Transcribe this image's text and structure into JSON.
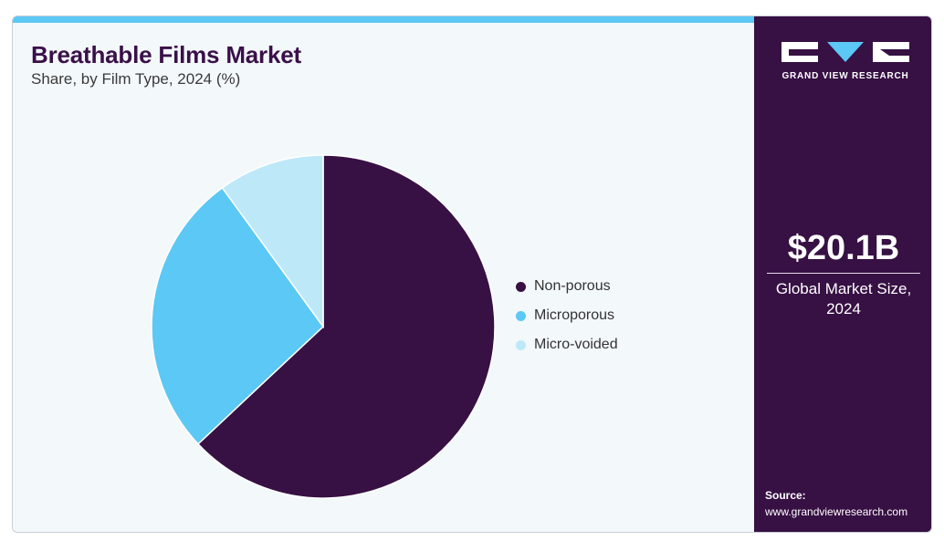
{
  "header": {
    "title": "Breathable Films Market",
    "subtitle": "Share, by Film Type, 2024 (%)"
  },
  "chart_data": {
    "type": "pie",
    "categories": [
      "Non-porous",
      "Microporous",
      "Micro-voided"
    ],
    "values": [
      63,
      27,
      10
    ],
    "colors": [
      "#371044",
      "#5bc8f5",
      "#bde8f8"
    ],
    "legend_position": "right"
  },
  "sidebar": {
    "logo_text": "GRAND VIEW RESEARCH",
    "market_value": "$20.1B",
    "market_label": "Global Market Size, 2024",
    "source_label": "Source:",
    "source_url": "www.grandviewresearch.com"
  }
}
